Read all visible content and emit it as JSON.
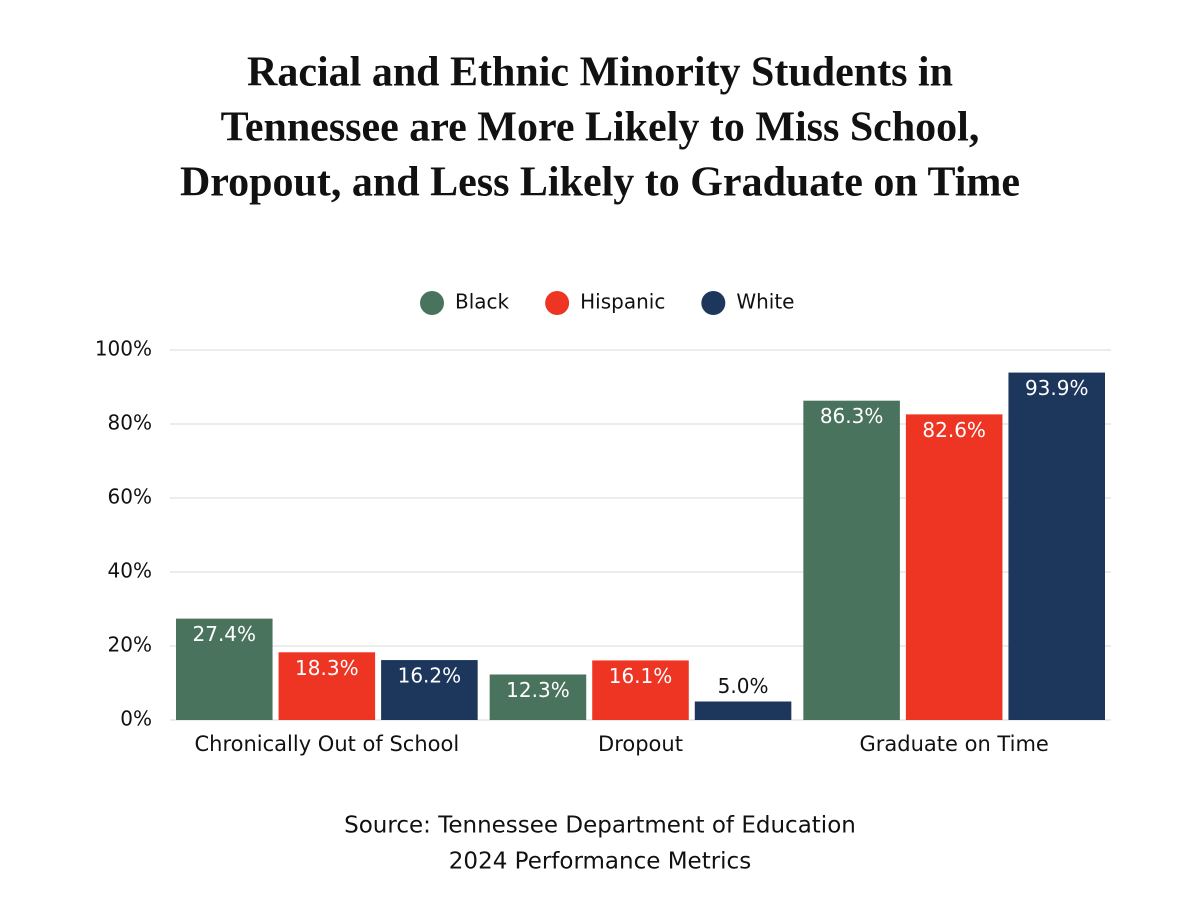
{
  "chart_data": {
    "type": "bar",
    "title": [
      "Racial and Ethnic Minority Students in",
      "Tennessee are More Likely to Miss School,",
      "Dropout, and Less Likely to Graduate on Time"
    ],
    "categories": [
      "Chronically Out of School",
      "Dropout",
      "Graduate on Time"
    ],
    "series": [
      {
        "name": "Black",
        "color": "#4a735e",
        "values": [
          27.4,
          12.3,
          86.3
        ],
        "value_labels": [
          "27.4%",
          "12.3%",
          "86.3%"
        ]
      },
      {
        "name": "Hispanic",
        "color": "#ee3524",
        "values": [
          18.3,
          16.1,
          82.6
        ],
        "value_labels": [
          "18.3%",
          "16.1%",
          "82.6%"
        ]
      },
      {
        "name": "White",
        "color": "#1c365c",
        "values": [
          16.2,
          5.0,
          93.9
        ],
        "value_labels": [
          "16.2%",
          "5.0%",
          "93.9%"
        ]
      }
    ],
    "ylim": [
      0,
      100
    ],
    "yticks": [
      {
        "value": 0,
        "label": "0%"
      },
      {
        "value": 20,
        "label": "20%"
      },
      {
        "value": 40,
        "label": "40%"
      },
      {
        "value": 60,
        "label": "60%"
      },
      {
        "value": 80,
        "label": "80%"
      },
      {
        "value": 100,
        "label": "100%"
      }
    ],
    "grid": true,
    "legend": "top",
    "source": [
      "Source: Tennessee Department of Education",
      "2024 Performance Metrics"
    ]
  }
}
